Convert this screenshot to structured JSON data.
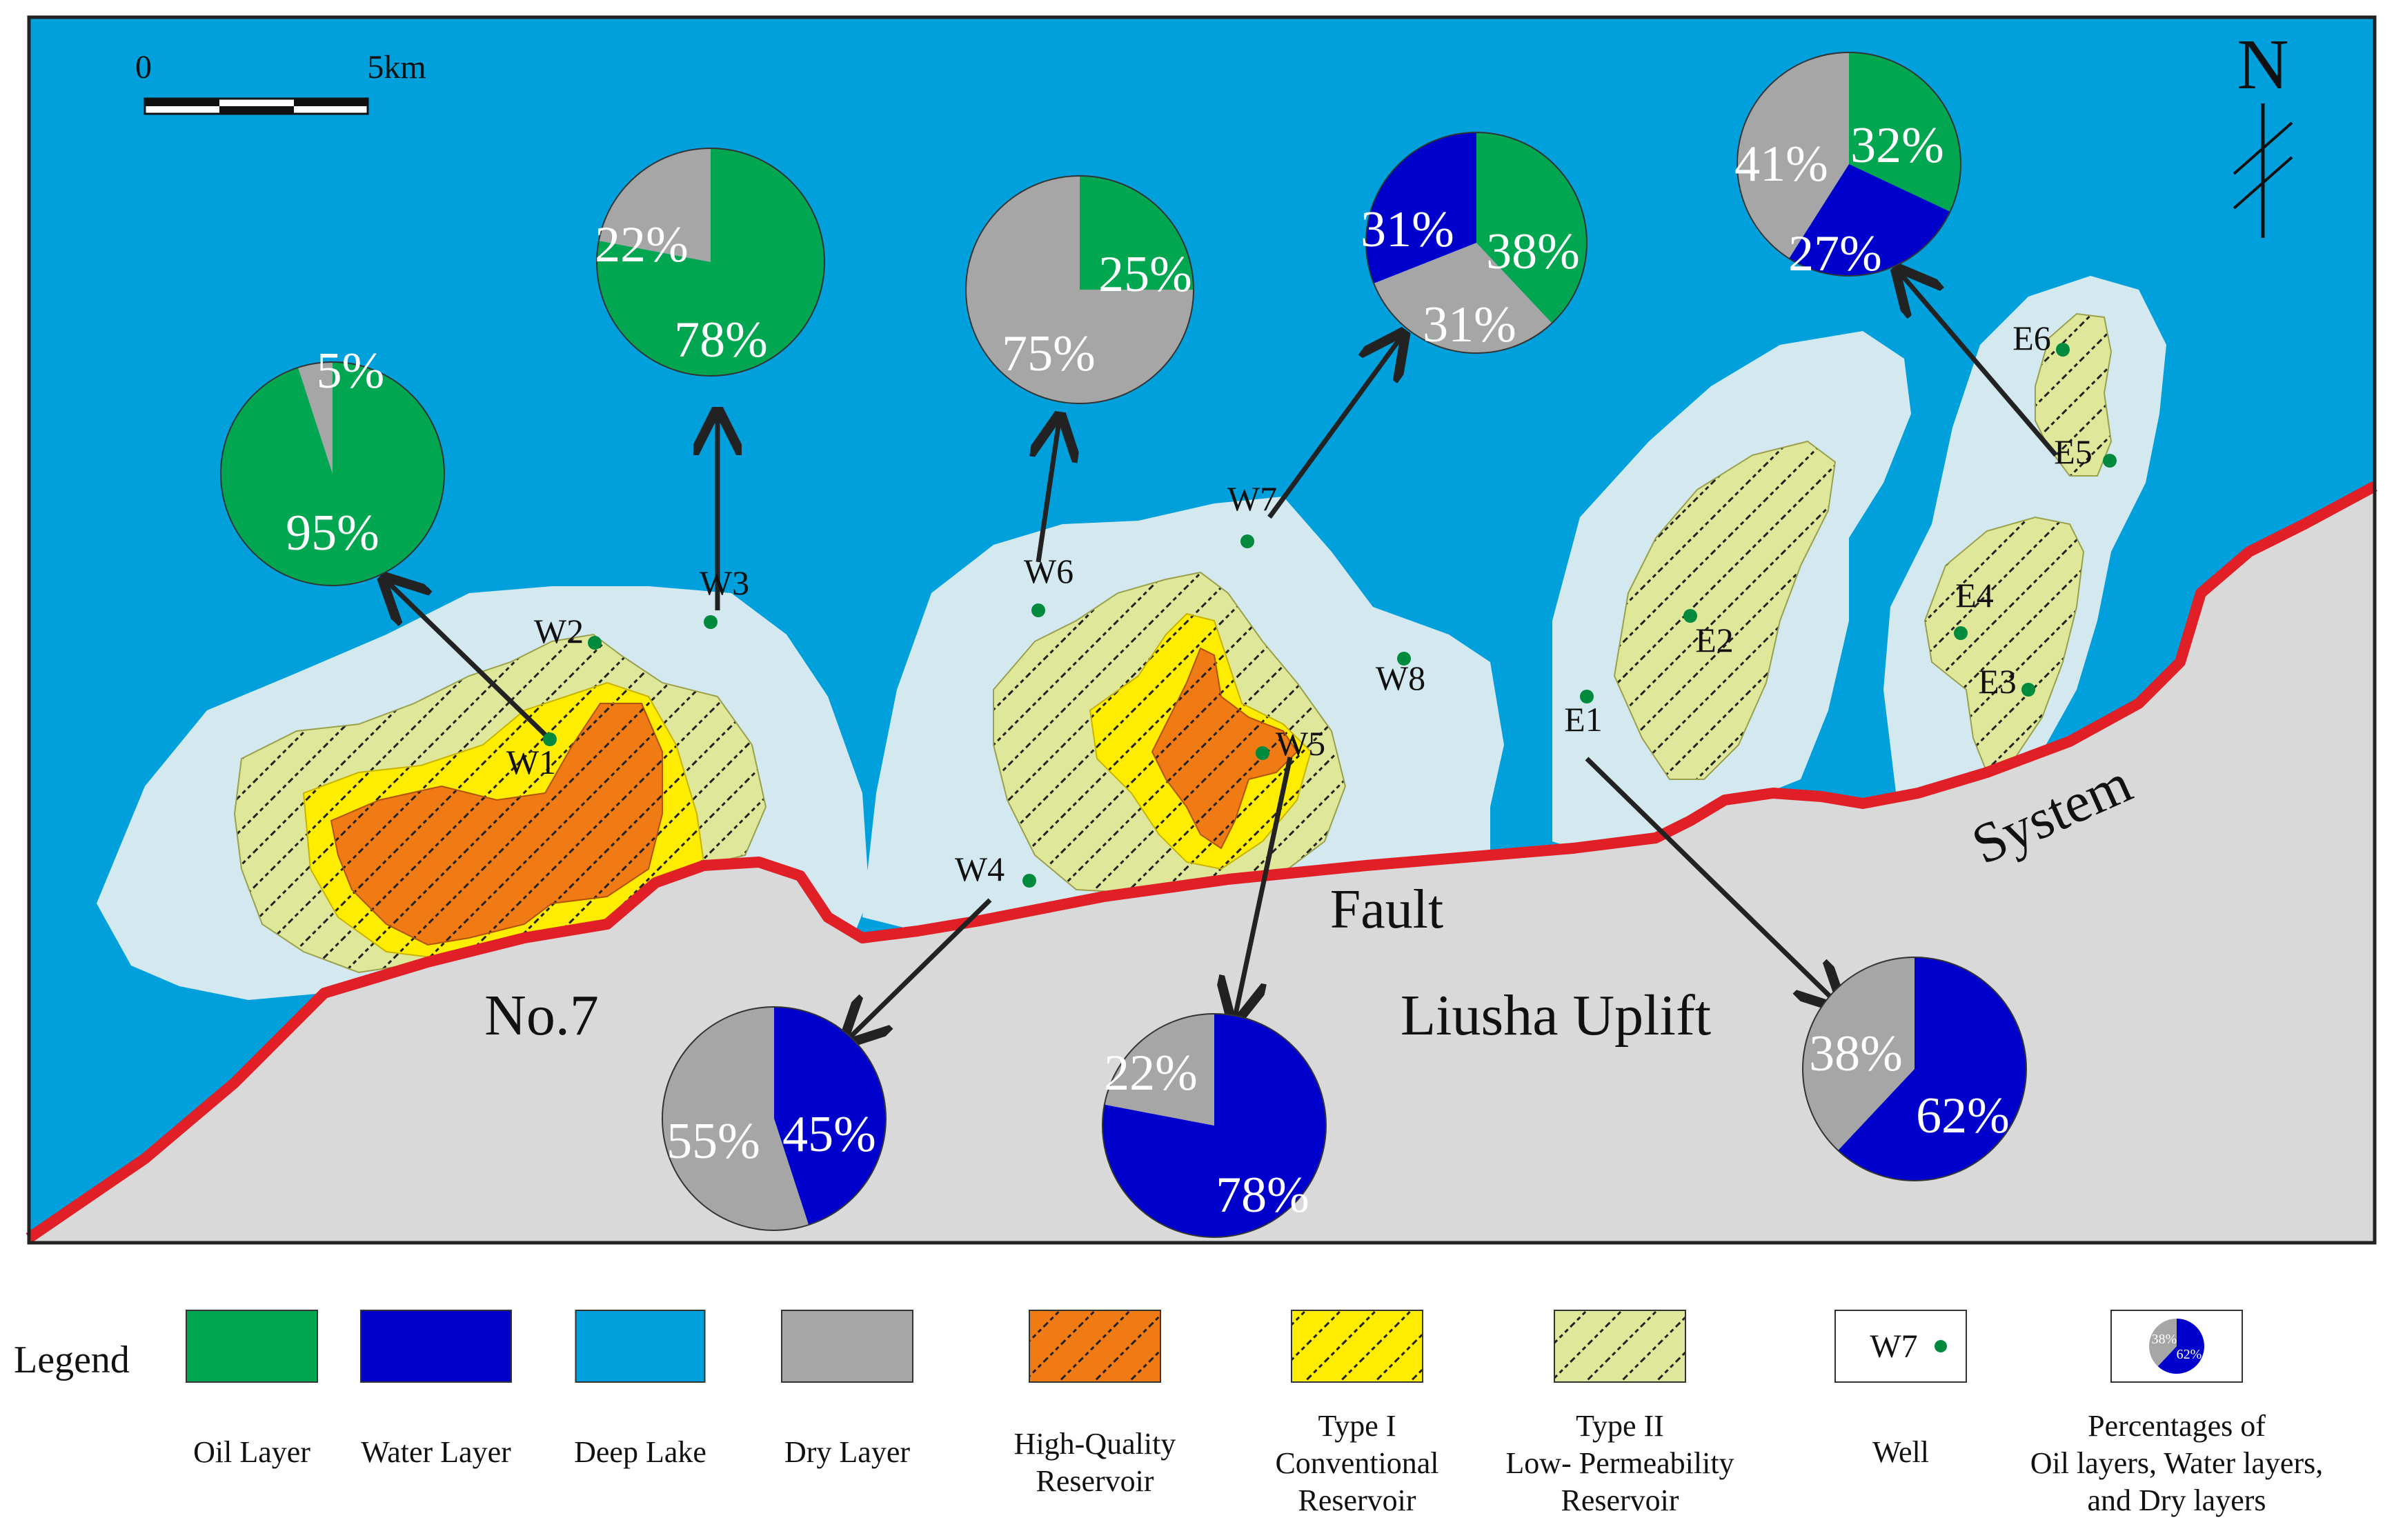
{
  "map": {
    "scale_bar": {
      "start_label": "0",
      "end_label": "5km"
    },
    "north_label": "N",
    "region_labels": {
      "no7": "No.7",
      "fault": "Fault",
      "system": "System",
      "liusha": "Liusha Uplift"
    }
  },
  "wells": [
    "W1",
    "W2",
    "W3",
    "W4",
    "W5",
    "W6",
    "W7",
    "W8",
    "E1",
    "E2",
    "E3",
    "E4",
    "E5",
    "E6"
  ],
  "colors": {
    "oil": "#00a650",
    "water": "#0000cc",
    "deep_lake": "#00a0dc",
    "dry": "#a6a6a6",
    "uplift": "#d9d9d9",
    "shallow": "#d3e9ef",
    "high_quality": "#f07a14",
    "type1": "#ffed00",
    "type2": "#dfe89a",
    "fault": "#e11f26",
    "well": "#008a3e"
  },
  "pies": [
    {
      "well": "W1",
      "slices": [
        {
          "kind": "oil",
          "label": "95%",
          "value": 95
        },
        {
          "kind": "dry",
          "label": "5%",
          "value": 5
        }
      ]
    },
    {
      "well": "W3",
      "slices": [
        {
          "kind": "oil",
          "label": "78%",
          "value": 78
        },
        {
          "kind": "dry",
          "label": "22%",
          "value": 22
        }
      ]
    },
    {
      "well": "W6",
      "slices": [
        {
          "kind": "oil",
          "label": "25%",
          "value": 25
        },
        {
          "kind": "dry",
          "label": "75%",
          "value": 75
        }
      ]
    },
    {
      "well": "W7",
      "slices": [
        {
          "kind": "oil",
          "label": "38%",
          "value": 38
        },
        {
          "kind": "dry",
          "label": "31%",
          "value": 31
        },
        {
          "kind": "water",
          "label": "31%",
          "value": 31
        }
      ]
    },
    {
      "well": "E5",
      "slices": [
        {
          "kind": "oil",
          "label": "32%",
          "value": 32
        },
        {
          "kind": "water",
          "label": "27%",
          "value": 27
        },
        {
          "kind": "dry",
          "label": "41%",
          "value": 41
        }
      ]
    },
    {
      "well": "W4",
      "slices": [
        {
          "kind": "water",
          "label": "45%",
          "value": 45
        },
        {
          "kind": "dry",
          "label": "55%",
          "value": 55
        }
      ]
    },
    {
      "well": "W5",
      "slices": [
        {
          "kind": "water",
          "label": "78%",
          "value": 78
        },
        {
          "kind": "dry",
          "label": "22%",
          "value": 22
        }
      ]
    },
    {
      "well": "E1",
      "slices": [
        {
          "kind": "water",
          "label": "62%",
          "value": 62
        },
        {
          "kind": "dry",
          "label": "38%",
          "value": 38
        }
      ]
    }
  ],
  "legend": {
    "title": "Legend",
    "items": [
      {
        "key": "oil",
        "label": [
          "Oil Layer"
        ]
      },
      {
        "key": "water",
        "label": [
          "Water Layer"
        ]
      },
      {
        "key": "deep_lake",
        "label": [
          "Deep Lake"
        ]
      },
      {
        "key": "dry",
        "label": [
          "Dry Layer"
        ]
      },
      {
        "key": "high_quality",
        "label": [
          "High-Quality",
          "Reservoir"
        ]
      },
      {
        "key": "type1",
        "label": [
          "Type I",
          "Conventional",
          "Reservoir"
        ]
      },
      {
        "key": "type2",
        "label": [
          "Type II",
          "Low- Permeability",
          "Reservoir"
        ]
      },
      {
        "key": "well",
        "label": [
          "Well"
        ],
        "sample": "W7"
      },
      {
        "key": "pie",
        "label": [
          "Percentages of",
          "Oil layers, Water layers,",
          "and Dry layers"
        ],
        "sample": {
          "dry": "38%",
          "water": "62%"
        }
      }
    ]
  }
}
